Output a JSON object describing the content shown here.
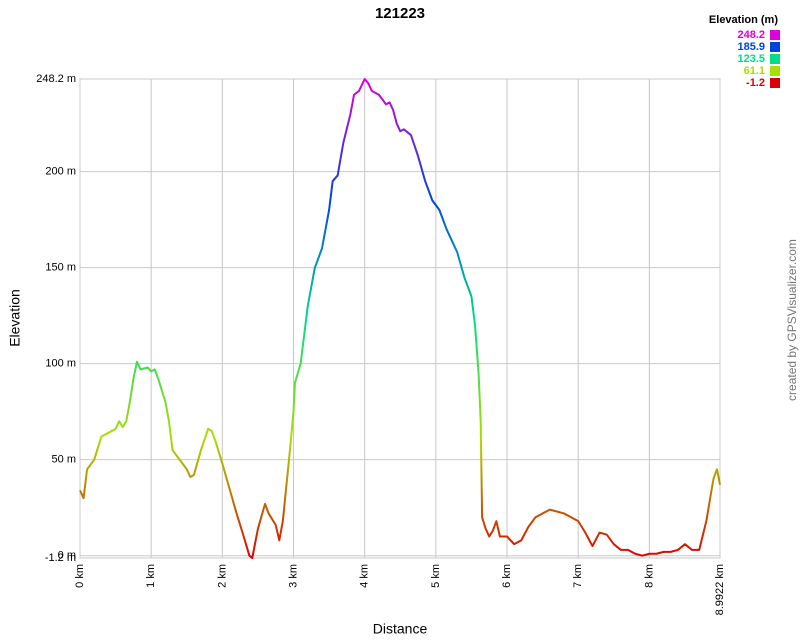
{
  "chart_data": {
    "type": "line",
    "title": "121223",
    "x_label": "Distance",
    "y_label": "Elevation",
    "credit": "created by GPSVisualizer.com",
    "x": [
      0,
      0.05,
      0.1,
      0.2,
      0.3,
      0.4,
      0.5,
      0.55,
      0.6,
      0.65,
      0.7,
      0.75,
      0.8,
      0.85,
      0.95,
      1.0,
      1.05,
      1.1,
      1.2,
      1.25,
      1.3,
      1.4,
      1.5,
      1.55,
      1.6,
      1.7,
      1.8,
      1.85,
      1.9,
      2.0,
      2.1,
      2.2,
      2.3,
      2.38,
      2.42,
      2.5,
      2.6,
      2.65,
      2.75,
      2.8,
      2.85,
      2.95,
      3.0,
      3.02,
      3.1,
      3.2,
      3.3,
      3.4,
      3.5,
      3.55,
      3.62,
      3.7,
      3.8,
      3.85,
      3.92,
      4.0,
      4.05,
      4.1,
      4.2,
      4.3,
      4.35,
      4.4,
      4.45,
      4.5,
      4.55,
      4.65,
      4.75,
      4.85,
      4.95,
      5.05,
      5.15,
      5.3,
      5.4,
      5.5,
      5.55,
      5.6,
      5.63,
      5.65,
      5.7,
      5.75,
      5.8,
      5.85,
      5.9,
      6.0,
      6.1,
      6.2,
      6.3,
      6.4,
      6.5,
      6.6,
      6.7,
      6.8,
      6.9,
      7.0,
      7.1,
      7.2,
      7.3,
      7.4,
      7.5,
      7.6,
      7.7,
      7.8,
      7.9,
      8.0,
      8.1,
      8.2,
      8.3,
      8.4,
      8.5,
      8.6,
      8.7,
      8.8,
      8.9,
      8.95,
      8.9922
    ],
    "values": [
      34,
      30,
      45,
      50,
      62,
      64,
      66,
      70,
      67,
      70,
      80,
      92,
      101,
      97,
      98,
      96,
      97,
      92,
      80,
      70,
      55,
      50,
      45,
      41,
      42,
      55,
      66,
      65,
      60,
      48,
      35,
      22,
      10,
      0,
      -1.2,
      14,
      27,
      22,
      16,
      8,
      18,
      55,
      75,
      90,
      100,
      130,
      150,
      160,
      180,
      195,
      198,
      215,
      230,
      240,
      242,
      248.2,
      246,
      242,
      240,
      235,
      236,
      232,
      225,
      221,
      222,
      219,
      208,
      195,
      185,
      180,
      170,
      158,
      145,
      135,
      120,
      95,
      70,
      20,
      14,
      10,
      13,
      18,
      10,
      10,
      6,
      8,
      15,
      20,
      22,
      24,
      23,
      22,
      20,
      18,
      12,
      5,
      12,
      11,
      6,
      3,
      3,
      1,
      0,
      1,
      1,
      2,
      2,
      3,
      6,
      3,
      3,
      18,
      40,
      45,
      37
    ],
    "xlim": [
      0,
      8.9922
    ],
    "ylim": [
      -1.2,
      248.2
    ],
    "xticks": [
      {
        "value": 0,
        "label": "0 km"
      },
      {
        "value": 1,
        "label": "1 km"
      },
      {
        "value": 2,
        "label": "2 km"
      },
      {
        "value": 3,
        "label": "3 km"
      },
      {
        "value": 4,
        "label": "4 km"
      },
      {
        "value": 5,
        "label": "5 km"
      },
      {
        "value": 6,
        "label": "6 km"
      },
      {
        "value": 7,
        "label": "7 km"
      },
      {
        "value": 8,
        "label": "8 km"
      },
      {
        "value": 8.9922,
        "label": "8.9922 km"
      }
    ],
    "yticks": [
      {
        "value": -1.2,
        "label": "-1.2 m"
      },
      {
        "value": 0,
        "label": "0 m"
      },
      {
        "value": 50,
        "label": "50 m"
      },
      {
        "value": 100,
        "label": "100 m"
      },
      {
        "value": 150,
        "label": "150 m"
      },
      {
        "value": 200,
        "label": "200 m"
      },
      {
        "value": 248.2,
        "label": "248.2 m"
      }
    ],
    "grid": true,
    "legend": {
      "title": "Elevation (m)",
      "entries": [
        {
          "value": 248.2,
          "color": "#dd00dd"
        },
        {
          "value": 185.9,
          "color": "#0044dd"
        },
        {
          "value": 123.5,
          "color": "#00dd88"
        },
        {
          "value": 61.1,
          "color": "#aadd00"
        },
        {
          "value": -1.2,
          "color": "#dd0000"
        }
      ]
    }
  }
}
